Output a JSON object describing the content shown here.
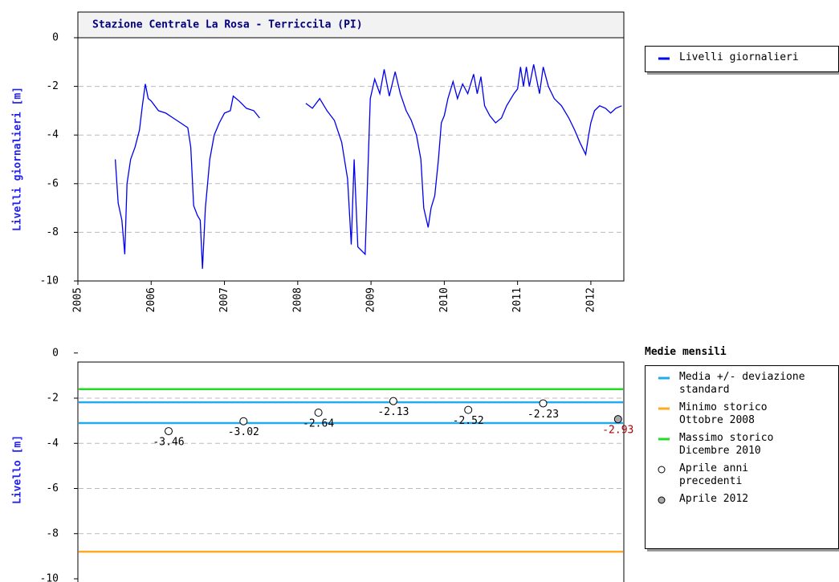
{
  "chart_data": [
    {
      "type": "line",
      "title": "Stazione Centrale La Rosa - Terriccila (PI)",
      "ylabel": "Livelli giornalieri [m]",
      "x": [
        2005.51,
        2005.55,
        2005.6,
        2005.64,
        2005.67,
        2005.72,
        2005.78,
        2005.84,
        2005.88,
        2005.92,
        2005.96,
        2006.0,
        2006.1,
        2006.2,
        2006.3,
        2006.4,
        2006.5,
        2006.54,
        2006.58,
        2006.63,
        2006.67,
        2006.7,
        2006.74,
        2006.8,
        2006.86,
        2006.93,
        2007.0,
        2007.08,
        2007.12,
        2007.2,
        2007.3,
        2007.4,
        2007.48,
        2007.8,
        2008.11,
        2008.2,
        2008.3,
        2008.4,
        2008.5,
        2008.6,
        2008.68,
        2008.73,
        2008.77,
        2008.82,
        2008.92,
        2008.99,
        2009.05,
        2009.12,
        2009.18,
        2009.25,
        2009.33,
        2009.4,
        2009.48,
        2009.55,
        2009.62,
        2009.68,
        2009.72,
        2009.78,
        2009.82,
        2009.87,
        2009.92,
        2009.96,
        2010.0,
        2010.05,
        2010.12,
        2010.18,
        2010.25,
        2010.32,
        2010.4,
        2010.45,
        2010.5,
        2010.55,
        2010.62,
        2010.7,
        2010.78,
        2010.85,
        2010.95,
        2011.0,
        2011.04,
        2011.08,
        2011.12,
        2011.16,
        2011.22,
        2011.3,
        2011.35,
        2011.42,
        2011.5,
        2011.6,
        2011.7,
        2011.78,
        2011.85,
        2011.93,
        2011.97,
        2012.0,
        2012.05,
        2012.12,
        2012.2,
        2012.27,
        2012.34,
        2012.42
      ],
      "series": [
        {
          "name": "Livelli giornalieri",
          "color": "#0000ee",
          "values": [
            -5.0,
            -6.8,
            -7.5,
            -8.9,
            -6.0,
            -5.0,
            -4.5,
            -3.8,
            -2.8,
            -1.9,
            -2.5,
            -2.6,
            -3.0,
            -3.1,
            -3.3,
            -3.5,
            -3.7,
            -4.5,
            -6.9,
            -7.3,
            -7.5,
            -9.5,
            -7.0,
            -5.0,
            -4.0,
            -3.5,
            -3.1,
            -3.0,
            -2.4,
            -2.6,
            -2.9,
            -3.0,
            -3.3,
            null,
            -2.7,
            -2.9,
            -2.5,
            -3.0,
            -3.4,
            -4.3,
            -5.8,
            -8.5,
            -5.0,
            -8.6,
            -8.9,
            -2.5,
            -1.7,
            -2.3,
            -1.3,
            -2.4,
            -1.4,
            -2.3,
            -3.0,
            -3.4,
            -4.0,
            -5.0,
            -7.0,
            -7.8,
            -7.0,
            -6.5,
            -5.0,
            -3.5,
            -3.2,
            -2.5,
            -1.8,
            -2.5,
            -1.9,
            -2.3,
            -1.5,
            -2.3,
            -1.6,
            -2.8,
            -3.2,
            -3.5,
            -3.3,
            -2.8,
            -2.3,
            -2.1,
            -1.2,
            -2.0,
            -1.2,
            -2.0,
            -1.1,
            -2.3,
            -1.2,
            -2.0,
            -2.5,
            -2.8,
            -3.3,
            -3.8,
            -4.3,
            -4.8,
            -4.0,
            -3.5,
            -3.0,
            -2.8,
            -2.9,
            -3.1,
            -2.9,
            -2.8
          ]
        }
      ],
      "xlim": [
        2005,
        2012.45
      ],
      "xticks": [
        2005,
        2006,
        2007,
        2008,
        2009,
        2010,
        2011,
        2012
      ],
      "ylim": [
        -10,
        0
      ],
      "yticks": [
        0,
        -2,
        -4,
        -6,
        -8,
        -10
      ],
      "grid": true
    },
    {
      "type": "scatter",
      "ylabel": "Livello [m]",
      "legend_title": "Medie mensili",
      "categories": [
        null,
        null,
        null,
        null,
        null,
        null,
        null
      ],
      "hlines": [
        {
          "name": "Media +/- deviazione\nstandard",
          "color": "#22aaee",
          "values": [
            -2.18,
            -3.1
          ]
        },
        {
          "name": "Minimo storico\nOttobre 2008",
          "color": "#ffaa22",
          "values": [
            -8.8
          ]
        },
        {
          "name": "Massimo storico\nDicembre 2010",
          "color": "#22dd22",
          "values": [
            -1.6
          ]
        }
      ],
      "series": [
        {
          "name": "Aprile anni\nprecedenti",
          "color": "#ffffff",
          "label_color": "#000000",
          "values": [
            -3.46,
            -3.02,
            -2.64,
            -2.13,
            -2.52,
            -2.23,
            null
          ]
        },
        {
          "name": "Aprile 2012",
          "color": "#aaaaaa",
          "label_color": "#aa0000",
          "values": [
            null,
            null,
            null,
            null,
            null,
            null,
            -2.93
          ]
        }
      ],
      "ylim": [
        -10,
        -0.4
      ],
      "yticks": [
        0,
        -2,
        -4,
        -6,
        -8,
        -10
      ],
      "grid": true
    }
  ]
}
